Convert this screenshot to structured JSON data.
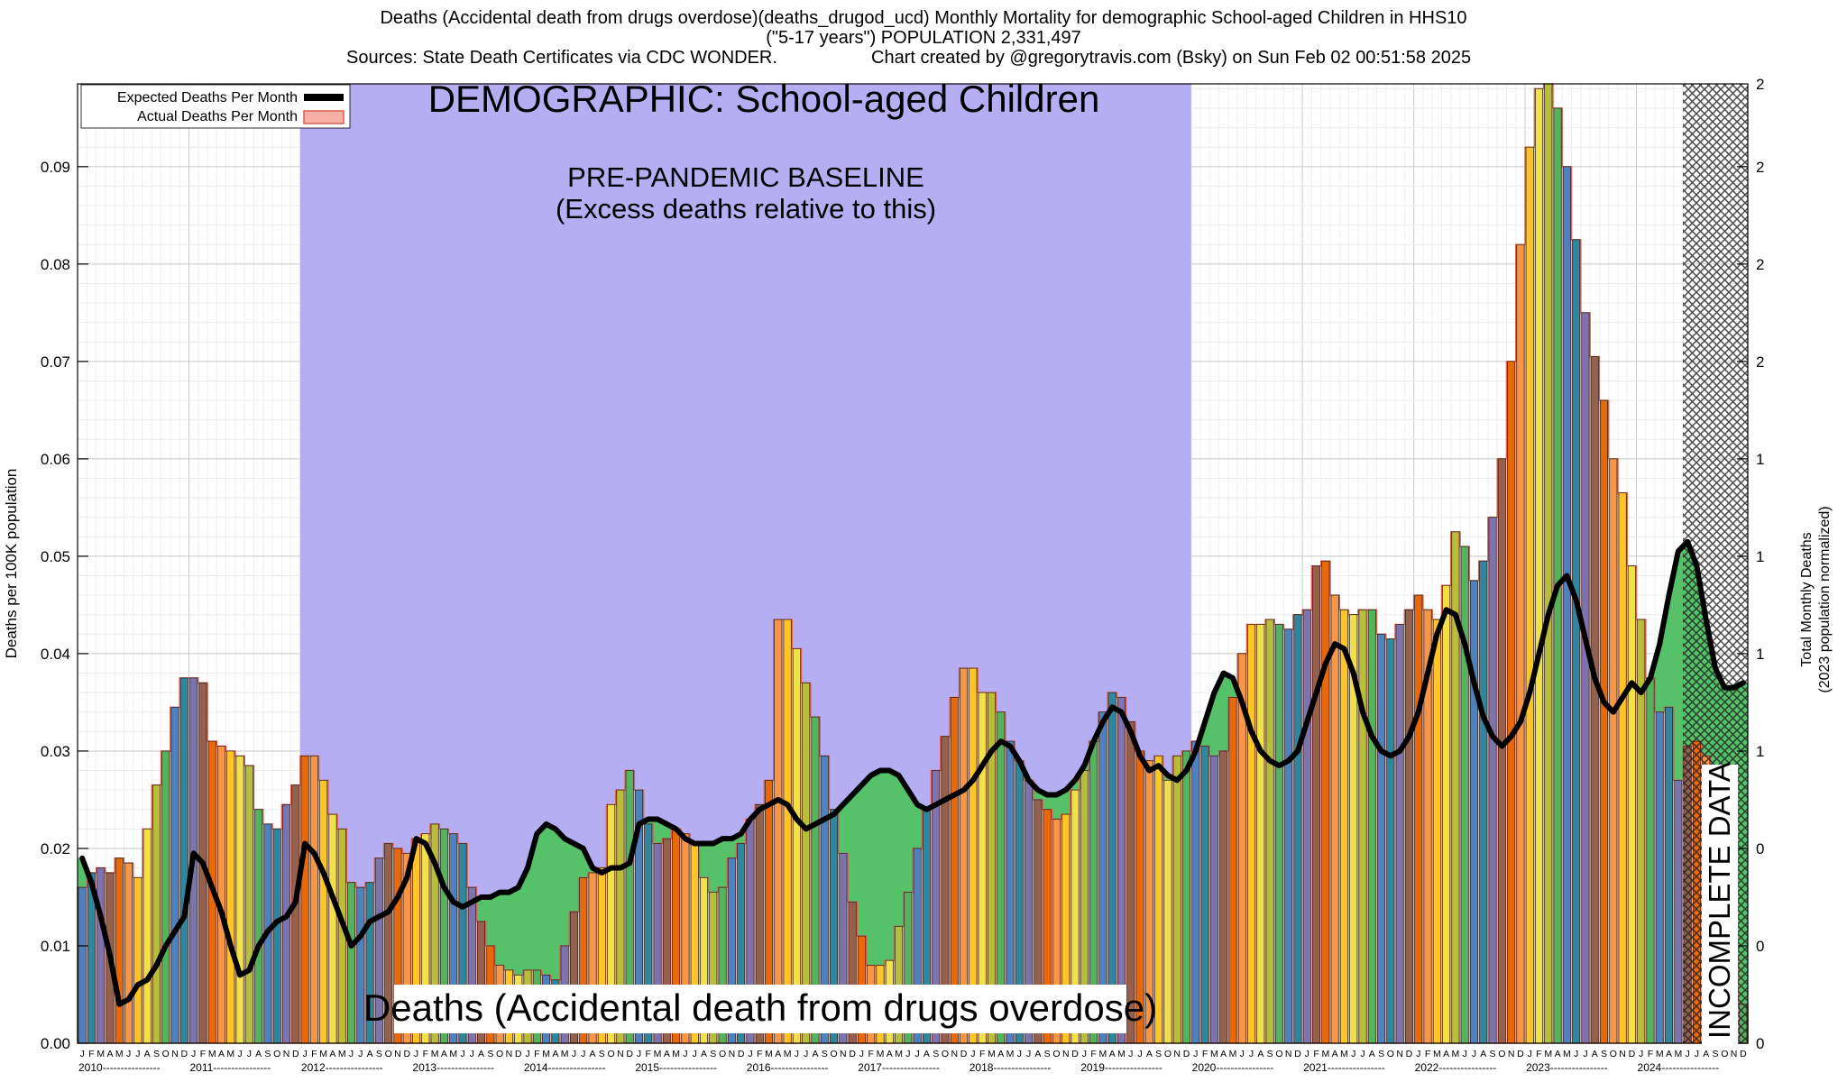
{
  "header": {
    "title_line1": "Deaths (Accidental death from drugs overdose)(deaths_drugod_ucd) Monthly Mortality for demographic School-aged Children in HHS10",
    "title_line2": "(\"5-17 years\") POPULATION 2,331,497",
    "sources": "Sources: State Death Certificates via CDC WONDER.",
    "credit": "Chart created by @gregorytravis.com (Bsky) on Sun Feb 02 00:51:58 2025"
  },
  "legend": {
    "expected_label": "Expected Deaths Per Month",
    "actual_label": "Actual Deaths Per Month"
  },
  "annotations": {
    "demographic": "DEMOGRAPHIC: School-aged Children",
    "baseline_line1": "PRE-PANDEMIC BASELINE",
    "baseline_line2": "(Excess deaths relative to this)",
    "incomplete": "INCOMPLETE DATA",
    "bottom_label": "Deaths (Accidental death from drugs overdose)"
  },
  "colors": {
    "baseline_region": "#b5aef3",
    "expected_area_fill": "#55c168",
    "actual_area_fill": "#f6b0a4",
    "actual_area_stroke": "#d95f52",
    "expected_line": "#000000",
    "hatch": "#1c1c1c",
    "bar_palette": [
      "#4f81bd",
      "#31859c",
      "#7e74ad",
      "#95604c",
      "#e8690b",
      "#f79646",
      "#ffc527",
      "#f0e14b",
      "#b8bd3c",
      "#57b25e"
    ]
  },
  "chart_data": {
    "type": "bar",
    "title": "Deaths (Accidental death from drugs overdose) Monthly Mortality, School-aged Children (5-17 years), HHS10",
    "ylabel_left": "Deaths per 100K population",
    "ylabel_right_line1": "Total Monthly Deaths",
    "ylabel_right_line2": "(2023 population normalized)",
    "ylim": [
      0,
      0.0985
    ],
    "left_tick_values": [
      "0.00",
      "0.01",
      "0.02",
      "0.03",
      "0.04",
      "0.05",
      "0.06",
      "0.07",
      "0.08",
      "0.09"
    ],
    "right_tick_labels_bottom_to_top": [
      "0",
      "0",
      "0",
      "1",
      "1",
      "1",
      "1",
      "2",
      "2",
      "2",
      "2"
    ],
    "month_letters": [
      "J",
      "F",
      "M",
      "A",
      "M",
      "J",
      "J",
      "A",
      "S",
      "O",
      "N",
      "D"
    ],
    "years": [
      2010,
      2011,
      2012,
      2013,
      2014,
      2015,
      2016,
      2017,
      2018,
      2019,
      2020,
      2021,
      2022,
      2023,
      2024
    ],
    "baseline_region_years": [
      2012,
      2020
    ],
    "incomplete_from": {
      "year": 2024,
      "month_index": 5
    },
    "series": [
      {
        "name": "Actual Deaths Per Month",
        "type": "bar",
        "units": "deaths per 100K population",
        "by_year": {
          "2010": [
            0.016,
            0.0175,
            0.018,
            0.0175,
            0.019,
            0.0185,
            0.017,
            0.022,
            0.0265,
            0.03,
            0.0345,
            0.0375
          ],
          "2011": [
            0.0375,
            0.037,
            0.031,
            0.0305,
            0.03,
            0.0295,
            0.0285,
            0.024,
            0.0225,
            0.022,
            0.0245,
            0.0265
          ],
          "2012": [
            0.0295,
            0.0295,
            0.027,
            0.0235,
            0.022,
            0.0165,
            0.016,
            0.0165,
            0.019,
            0.0205,
            0.02,
            0.0195
          ],
          "2013": [
            0.021,
            0.0215,
            0.0225,
            0.022,
            0.0215,
            0.0205,
            0.016,
            0.0125,
            0.01,
            0.008,
            0.0075,
            0.007
          ],
          "2014": [
            0.0075,
            0.0075,
            0.007,
            0.0065,
            0.01,
            0.0135,
            0.017,
            0.0175,
            0.018,
            0.0245,
            0.026,
            0.028
          ],
          "2015": [
            0.026,
            0.0225,
            0.0205,
            0.021,
            0.022,
            0.0215,
            0.0205,
            0.017,
            0.0155,
            0.016,
            0.019,
            0.0205
          ],
          "2016": [
            0.023,
            0.0245,
            0.027,
            0.0435,
            0.0435,
            0.0405,
            0.037,
            0.0335,
            0.0295,
            0.024,
            0.0195,
            0.0145
          ],
          "2017": [
            0.011,
            0.008,
            0.008,
            0.0085,
            0.012,
            0.0155,
            0.02,
            0.024,
            0.028,
            0.0315,
            0.0355,
            0.0385
          ],
          "2018": [
            0.0385,
            0.036,
            0.036,
            0.034,
            0.031,
            0.029,
            0.027,
            0.025,
            0.024,
            0.023,
            0.0235,
            0.026
          ],
          "2019": [
            0.028,
            0.031,
            0.034,
            0.036,
            0.0355,
            0.033,
            0.03,
            0.029,
            0.0295,
            0.027,
            0.0295,
            0.03
          ],
          "2020": [
            0.031,
            0.0305,
            0.0295,
            0.03,
            0.0355,
            0.04,
            0.043,
            0.043,
            0.0435,
            0.043,
            0.0425,
            0.044
          ],
          "2021": [
            0.0445,
            0.049,
            0.0495,
            0.046,
            0.0445,
            0.044,
            0.0445,
            0.0445,
            0.042,
            0.0415,
            0.043,
            0.0445
          ],
          "2022": [
            0.046,
            0.0445,
            0.0435,
            0.047,
            0.0525,
            0.051,
            0.0475,
            0.0495,
            0.054,
            0.06,
            0.07,
            0.082
          ],
          "2023": [
            0.092,
            0.098,
            0.0995,
            0.096,
            0.09,
            0.0825,
            0.075,
            0.0705,
            0.066,
            0.06,
            0.0565,
            0.049
          ],
          "2024": [
            0.0435,
            0.0375,
            0.034,
            0.0345,
            0.027,
            0.0305,
            0.031,
            0.0295,
            0.0225,
            0.016,
            0.009,
            0.004
          ]
        }
      },
      {
        "name": "Expected Deaths Per Month",
        "type": "line",
        "units": "deaths per 100K population",
        "by_year": {
          "2010": [
            0.019,
            0.0165,
            0.013,
            0.009,
            0.004,
            0.0045,
            0.006,
            0.0065,
            0.008,
            0.01,
            0.0115,
            0.013
          ],
          "2011": [
            0.0195,
            0.0185,
            0.016,
            0.0135,
            0.01,
            0.007,
            0.0075,
            0.01,
            0.0115,
            0.0125,
            0.013,
            0.0145
          ],
          "2012": [
            0.0205,
            0.0195,
            0.0175,
            0.015,
            0.0125,
            0.01,
            0.011,
            0.0125,
            0.013,
            0.0135,
            0.015,
            0.017
          ],
          "2013": [
            0.021,
            0.0205,
            0.0185,
            0.016,
            0.0145,
            0.014,
            0.0145,
            0.015,
            0.015,
            0.0155,
            0.0155,
            0.016
          ],
          "2014": [
            0.018,
            0.0215,
            0.0225,
            0.022,
            0.021,
            0.0205,
            0.02,
            0.018,
            0.0175,
            0.018,
            0.018,
            0.0185
          ],
          "2015": [
            0.0225,
            0.023,
            0.023,
            0.0225,
            0.022,
            0.021,
            0.0205,
            0.0205,
            0.0205,
            0.021,
            0.021,
            0.0215
          ],
          "2016": [
            0.023,
            0.024,
            0.0245,
            0.025,
            0.0245,
            0.023,
            0.022,
            0.0225,
            0.023,
            0.0235,
            0.0245,
            0.0255
          ],
          "2017": [
            0.0265,
            0.0275,
            0.028,
            0.028,
            0.0275,
            0.026,
            0.0245,
            0.024,
            0.0245,
            0.025,
            0.0255,
            0.026
          ],
          "2018": [
            0.027,
            0.0285,
            0.03,
            0.031,
            0.0305,
            0.029,
            0.027,
            0.026,
            0.0255,
            0.0255,
            0.026,
            0.027
          ],
          "2019": [
            0.0285,
            0.031,
            0.033,
            0.0345,
            0.034,
            0.032,
            0.0295,
            0.028,
            0.0285,
            0.0275,
            0.027,
            0.028
          ],
          "2020": [
            0.03,
            0.033,
            0.036,
            0.038,
            0.0375,
            0.035,
            0.032,
            0.03,
            0.029,
            0.0285,
            0.029,
            0.03
          ],
          "2021": [
            0.033,
            0.036,
            0.039,
            0.041,
            0.0405,
            0.038,
            0.034,
            0.0315,
            0.03,
            0.0295,
            0.03,
            0.0315
          ],
          "2022": [
            0.034,
            0.038,
            0.042,
            0.0445,
            0.044,
            0.041,
            0.037,
            0.0335,
            0.0315,
            0.0305,
            0.0315,
            0.033
          ],
          "2023": [
            0.036,
            0.04,
            0.044,
            0.047,
            0.048,
            0.0455,
            0.0415,
            0.0375,
            0.035,
            0.034,
            0.0355,
            0.037
          ],
          "2024": [
            0.036,
            0.0375,
            0.041,
            0.046,
            0.0505,
            0.0515,
            0.049,
            0.0435,
            0.0385,
            0.0365,
            0.0365,
            0.037
          ]
        }
      }
    ]
  }
}
